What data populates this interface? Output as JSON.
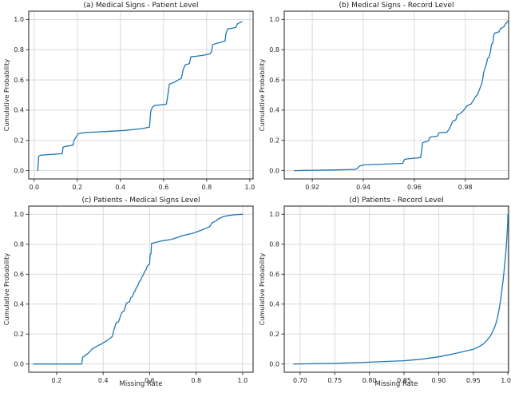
{
  "figure": {
    "background": "#ffffff",
    "line_color": "#1f77b4",
    "grid_color": "#d6d6d6",
    "spine_color": "#1c1c1c",
    "text_color": "#262626"
  },
  "chart_data": [
    {
      "id": "a",
      "type": "line",
      "title": "(a) Medical Signs - Patient Level",
      "xlabel": "",
      "ylabel": "Cumulative Probability",
      "xlim": [
        -0.025,
        1.015
      ],
      "ylim": [
        -0.055,
        1.055
      ],
      "grid": true,
      "legend": null,
      "xticks": [
        0.0,
        0.2,
        0.4,
        0.6,
        0.8,
        1.0
      ],
      "xtick_labels": [
        "0.0",
        "0.2",
        "0.4",
        "0.6",
        "0.8",
        "1.0"
      ],
      "yticks": [
        0.0,
        0.2,
        0.4,
        0.6,
        0.8,
        1.0
      ],
      "ytick_labels": [
        "0.0",
        "0.2",
        "0.4",
        "0.6",
        "0.8",
        "1.0"
      ],
      "points": [
        [
          0.017,
          0.0
        ],
        [
          0.021,
          0.095
        ],
        [
          0.03,
          0.102
        ],
        [
          0.06,
          0.105
        ],
        [
          0.13,
          0.112
        ],
        [
          0.134,
          0.155
        ],
        [
          0.145,
          0.16
        ],
        [
          0.18,
          0.168
        ],
        [
          0.185,
          0.2
        ],
        [
          0.205,
          0.245
        ],
        [
          0.24,
          0.252
        ],
        [
          0.32,
          0.258
        ],
        [
          0.42,
          0.266
        ],
        [
          0.5,
          0.278
        ],
        [
          0.535,
          0.288
        ],
        [
          0.54,
          0.39
        ],
        [
          0.548,
          0.42
        ],
        [
          0.558,
          0.43
        ],
        [
          0.613,
          0.44
        ],
        [
          0.622,
          0.52
        ],
        [
          0.627,
          0.572
        ],
        [
          0.65,
          0.585
        ],
        [
          0.683,
          0.612
        ],
        [
          0.69,
          0.665
        ],
        [
          0.7,
          0.7
        ],
        [
          0.72,
          0.708
        ],
        [
          0.726,
          0.752
        ],
        [
          0.78,
          0.762
        ],
        [
          0.815,
          0.772
        ],
        [
          0.823,
          0.79
        ],
        [
          0.827,
          0.832
        ],
        [
          0.84,
          0.84
        ],
        [
          0.885,
          0.857
        ],
        [
          0.889,
          0.908
        ],
        [
          0.897,
          0.937
        ],
        [
          0.935,
          0.947
        ],
        [
          0.943,
          0.972
        ],
        [
          0.955,
          0.98
        ],
        [
          0.963,
          0.986
        ]
      ]
    },
    {
      "id": "b",
      "type": "line",
      "title": "(b) Medical Signs - Record Level",
      "xlabel": "",
      "ylabel": "Cumulative Probability",
      "xlim": [
        0.909,
        0.997
      ],
      "ylim": [
        -0.055,
        1.055
      ],
      "grid": true,
      "legend": null,
      "xticks": [
        0.92,
        0.94,
        0.96,
        0.98
      ],
      "xtick_labels": [
        "0.92",
        "0.94",
        "0.96",
        "0.98"
      ],
      "yticks": [
        0.0,
        0.2,
        0.4,
        0.6,
        0.8,
        1.0
      ],
      "ytick_labels": [
        "0.0",
        "0.2",
        "0.4",
        "0.6",
        "0.8",
        "1.0"
      ],
      "points": [
        [
          0.913,
          0.0
        ],
        [
          0.928,
          0.004
        ],
        [
          0.9365,
          0.008
        ],
        [
          0.9375,
          0.012
        ],
        [
          0.9385,
          0.03
        ],
        [
          0.9405,
          0.038
        ],
        [
          0.948,
          0.043
        ],
        [
          0.9555,
          0.048
        ],
        [
          0.9562,
          0.075
        ],
        [
          0.9585,
          0.08
        ],
        [
          0.9625,
          0.086
        ],
        [
          0.9633,
          0.185
        ],
        [
          0.9655,
          0.196
        ],
        [
          0.9662,
          0.222
        ],
        [
          0.969,
          0.228
        ],
        [
          0.9697,
          0.25
        ],
        [
          0.9728,
          0.254
        ],
        [
          0.9737,
          0.275
        ],
        [
          0.9744,
          0.3
        ],
        [
          0.9751,
          0.328
        ],
        [
          0.9763,
          0.335
        ],
        [
          0.9768,
          0.368
        ],
        [
          0.978,
          0.377
        ],
        [
          0.9793,
          0.398
        ],
        [
          0.98,
          0.413
        ],
        [
          0.9806,
          0.428
        ],
        [
          0.9822,
          0.44
        ],
        [
          0.9829,
          0.456
        ],
        [
          0.9835,
          0.474
        ],
        [
          0.984,
          0.49
        ],
        [
          0.9848,
          0.502
        ],
        [
          0.9854,
          0.53
        ],
        [
          0.9859,
          0.552
        ],
        [
          0.9864,
          0.572
        ],
        [
          0.9868,
          0.6
        ],
        [
          0.9872,
          0.648
        ],
        [
          0.9879,
          0.684
        ],
        [
          0.9884,
          0.712
        ],
        [
          0.9887,
          0.74
        ],
        [
          0.9894,
          0.752
        ],
        [
          0.9899,
          0.79
        ],
        [
          0.9903,
          0.835
        ],
        [
          0.9908,
          0.843
        ],
        [
          0.9912,
          0.9
        ],
        [
          0.9917,
          0.912
        ],
        [
          0.9932,
          0.918
        ],
        [
          0.9938,
          0.938
        ],
        [
          0.9944,
          0.944
        ],
        [
          0.9952,
          0.953
        ],
        [
          0.9957,
          0.97
        ],
        [
          0.9963,
          0.98
        ],
        [
          0.9968,
          0.99
        ]
      ]
    },
    {
      "id": "c",
      "type": "line",
      "title": "(c) Patients - Medical Signs Level",
      "xlabel": "Missing Rate",
      "ylabel": "Cumulative Probability",
      "xlim": [
        0.08,
        1.045
      ],
      "ylim": [
        -0.055,
        1.055
      ],
      "grid": true,
      "legend": null,
      "xticks": [
        0.2,
        0.4,
        0.6,
        0.8,
        1.0
      ],
      "xtick_labels": [
        "0.2",
        "0.4",
        "0.6",
        "0.8",
        "1.0"
      ],
      "yticks": [
        0.0,
        0.2,
        0.4,
        0.6,
        0.8,
        1.0
      ],
      "ytick_labels": [
        "0.0",
        "0.2",
        "0.4",
        "0.6",
        "0.8",
        "1.0"
      ],
      "points": [
        [
          0.1,
          0.0
        ],
        [
          0.308,
          0.0
        ],
        [
          0.312,
          0.045
        ],
        [
          0.322,
          0.056
        ],
        [
          0.332,
          0.068
        ],
        [
          0.34,
          0.078
        ],
        [
          0.352,
          0.1
        ],
        [
          0.364,
          0.11
        ],
        [
          0.378,
          0.124
        ],
        [
          0.39,
          0.131
        ],
        [
          0.4,
          0.141
        ],
        [
          0.41,
          0.151
        ],
        [
          0.42,
          0.161
        ],
        [
          0.43,
          0.171
        ],
        [
          0.44,
          0.185
        ],
        [
          0.445,
          0.22
        ],
        [
          0.451,
          0.25
        ],
        [
          0.456,
          0.275
        ],
        [
          0.466,
          0.281
        ],
        [
          0.474,
          0.317
        ],
        [
          0.48,
          0.344
        ],
        [
          0.49,
          0.354
        ],
        [
          0.497,
          0.39
        ],
        [
          0.501,
          0.407
        ],
        [
          0.514,
          0.418
        ],
        [
          0.519,
          0.444
        ],
        [
          0.526,
          0.451
        ],
        [
          0.532,
          0.476
        ],
        [
          0.537,
          0.487
        ],
        [
          0.544,
          0.513
        ],
        [
          0.549,
          0.523
        ],
        [
          0.555,
          0.549
        ],
        [
          0.56,
          0.556
        ],
        [
          0.567,
          0.582
        ],
        [
          0.572,
          0.593
        ],
        [
          0.579,
          0.62
        ],
        [
          0.585,
          0.631
        ],
        [
          0.59,
          0.655
        ],
        [
          0.6,
          0.668
        ],
        [
          0.602,
          0.73
        ],
        [
          0.606,
          0.737
        ],
        [
          0.608,
          0.805
        ],
        [
          0.62,
          0.81
        ],
        [
          0.65,
          0.822
        ],
        [
          0.695,
          0.833
        ],
        [
          0.745,
          0.859
        ],
        [
          0.79,
          0.875
        ],
        [
          0.835,
          0.902
        ],
        [
          0.858,
          0.917
        ],
        [
          0.868,
          0.943
        ],
        [
          0.885,
          0.955
        ],
        [
          0.896,
          0.97
        ],
        [
          0.92,
          0.986
        ],
        [
          0.94,
          0.992
        ],
        [
          0.965,
          0.997
        ],
        [
          1.0,
          1.0
        ]
      ]
    },
    {
      "id": "d",
      "type": "line",
      "title": "(d) Patients - Record Level",
      "xlabel": "Missing Rate",
      "ylabel": "Cumulative Probability",
      "xlim": [
        0.677,
        1.001
      ],
      "ylim": [
        -0.055,
        1.055
      ],
      "grid": true,
      "legend": null,
      "xticks": [
        0.7,
        0.75,
        0.8,
        0.85,
        0.9,
        0.95,
        1.0
      ],
      "xtick_labels": [
        "0.70",
        "0.75",
        "0.80",
        "0.85",
        "0.90",
        "0.95",
        "1.00"
      ],
      "yticks": [
        0.0,
        0.2,
        0.4,
        0.6,
        0.8,
        1.0
      ],
      "ytick_labels": [
        "0.0",
        "0.2",
        "0.4",
        "0.6",
        "0.8",
        "1.0"
      ],
      "points": [
        [
          0.691,
          0.0
        ],
        [
          0.75,
          0.004
        ],
        [
          0.8,
          0.012
        ],
        [
          0.85,
          0.022
        ],
        [
          0.875,
          0.032
        ],
        [
          0.9,
          0.048
        ],
        [
          0.92,
          0.066
        ],
        [
          0.935,
          0.082
        ],
        [
          0.95,
          0.098
        ],
        [
          0.958,
          0.115
        ],
        [
          0.965,
          0.135
        ],
        [
          0.97,
          0.16
        ],
        [
          0.975,
          0.19
        ],
        [
          0.979,
          0.225
        ],
        [
          0.982,
          0.26
        ],
        [
          0.985,
          0.31
        ],
        [
          0.9875,
          0.37
        ],
        [
          0.9895,
          0.43
        ],
        [
          0.9912,
          0.49
        ],
        [
          0.9928,
          0.55
        ],
        [
          0.9942,
          0.61
        ],
        [
          0.9955,
          0.67
        ],
        [
          0.9965,
          0.72
        ],
        [
          0.9974,
          0.77
        ],
        [
          0.9981,
          0.82
        ],
        [
          0.9987,
          0.86
        ],
        [
          0.9992,
          0.9
        ],
        [
          0.9996,
          0.93
        ],
        [
          0.9999,
          0.96
        ],
        [
          1.0,
          1.0
        ],
        [
          1.001,
          1.0
        ]
      ]
    }
  ]
}
